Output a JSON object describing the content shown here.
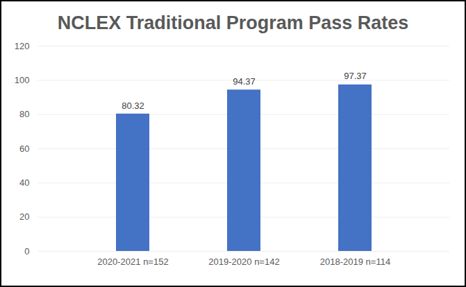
{
  "chart_data": {
    "type": "bar",
    "title": "NCLEX Traditional Program Pass Rates",
    "categories": [
      "2020-2021 n=152",
      "2019-2020 n=142",
      "2018-2019 n=114"
    ],
    "values": [
      80.32,
      94.37,
      97.37
    ],
    "color": "#4472c4",
    "ylim": [
      0,
      120
    ],
    "yticks": [
      0,
      20,
      40,
      60,
      80,
      100,
      120
    ],
    "grid": true,
    "data_labels": true
  }
}
